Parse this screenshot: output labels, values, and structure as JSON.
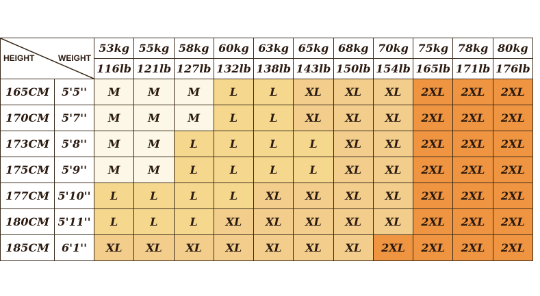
{
  "corner": {
    "height_label": "HEIGHT",
    "weight_label": "WEIGHT"
  },
  "weights_kg": [
    "53kg",
    "55kg",
    "58kg",
    "60kg",
    "63kg",
    "65kg",
    "68kg",
    "70kg",
    "75kg",
    "78kg",
    "80kg"
  ],
  "weights_lb": [
    "116lb",
    "121lb",
    "127lb",
    "132lb",
    "138lb",
    "143lb",
    "150lb",
    "154lb",
    "165lb",
    "171lb",
    "176lb"
  ],
  "rows": [
    {
      "cm": "165CM",
      "ft": "5'5''",
      "sizes": [
        "M",
        "M",
        "M",
        "L",
        "L",
        "XL",
        "XL",
        "XL",
        "2XL",
        "2XL",
        "2XL"
      ]
    },
    {
      "cm": "170CM",
      "ft": "5'7''",
      "sizes": [
        "M",
        "M",
        "M",
        "L",
        "L",
        "XL",
        "XL",
        "XL",
        "2XL",
        "2XL",
        "2XL"
      ]
    },
    {
      "cm": "173CM",
      "ft": "5'8''",
      "sizes": [
        "M",
        "M",
        "L",
        "L",
        "L",
        "L",
        "XL",
        "XL",
        "2XL",
        "2XL",
        "2XL"
      ]
    },
    {
      "cm": "175CM",
      "ft": "5'9''",
      "sizes": [
        "M",
        "M",
        "L",
        "L",
        "L",
        "L",
        "XL",
        "XL",
        "2XL",
        "2XL",
        "2XL"
      ]
    },
    {
      "cm": "177CM",
      "ft": "5'10''",
      "sizes": [
        "L",
        "L",
        "L",
        "L",
        "XL",
        "XL",
        "XL",
        "XL",
        "2XL",
        "2XL",
        "2XL"
      ]
    },
    {
      "cm": "180CM",
      "ft": "5'11''",
      "sizes": [
        "L",
        "L",
        "L",
        "XL",
        "XL",
        "XL",
        "XL",
        "XL",
        "2XL",
        "2XL",
        "2XL"
      ]
    },
    {
      "cm": "185CM",
      "ft": "6'1''",
      "sizes": [
        "XL",
        "XL",
        "XL",
        "XL",
        "XL",
        "XL",
        "XL",
        "2XL",
        "2XL",
        "2XL",
        "2XL"
      ]
    }
  ],
  "size_colors": {
    "M": "#fcf7e6",
    "L": "#f5d78e",
    "XL": "#f2cd8c",
    "2XL": "#ef9440"
  }
}
